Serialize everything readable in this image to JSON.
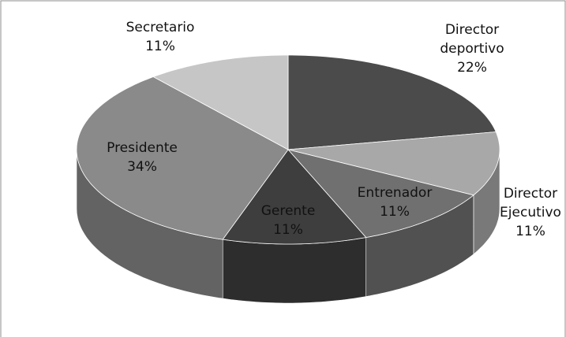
{
  "chart_data": {
    "type": "pie3d",
    "categories": [
      "Director deportivo",
      "Director Ejecutivo",
      "Entrenador",
      "Gerente",
      "Presidente",
      "Secretario"
    ],
    "values": [
      22,
      11,
      11,
      11,
      34,
      11
    ],
    "value_labels": [
      "22%",
      "11%",
      "11%",
      "11%",
      "34%",
      "11%"
    ],
    "colors": [
      "#4b4b4b",
      "#a8a8a8",
      "#707070",
      "#3e3e3e",
      "#8a8a8a",
      "#c6c6c6"
    ]
  }
}
